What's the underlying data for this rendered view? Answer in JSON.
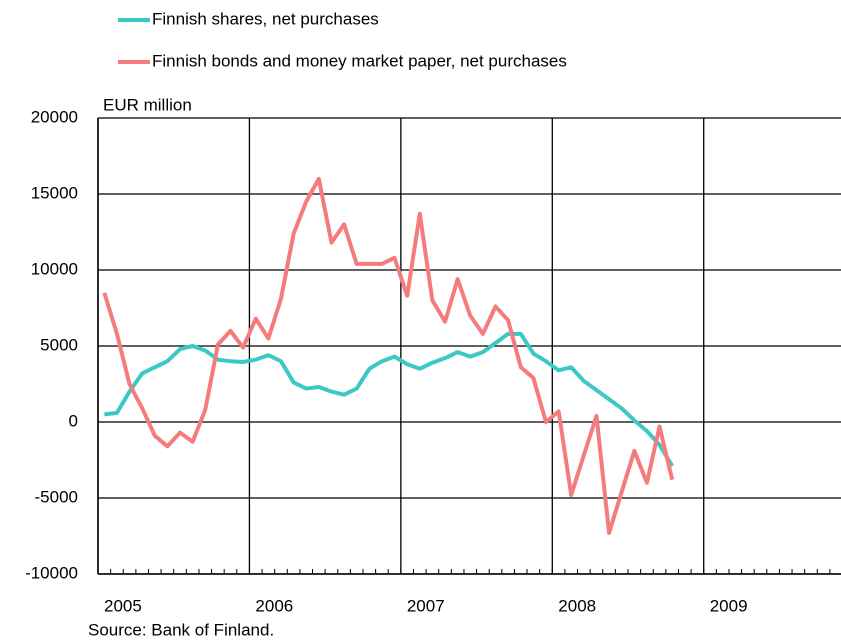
{
  "chart_data": {
    "type": "line",
    "y_axis_label": "EUR million",
    "source": "Source: Bank of Finland.",
    "x": [
      2005.042,
      2005.125,
      2005.208,
      2005.292,
      2005.375,
      2005.458,
      2005.542,
      2005.625,
      2005.708,
      2005.792,
      2005.875,
      2005.958,
      2006.042,
      2006.125,
      2006.208,
      2006.292,
      2006.375,
      2006.458,
      2006.542,
      2006.625,
      2006.708,
      2006.792,
      2006.875,
      2006.958,
      2007.042,
      2007.125,
      2007.208,
      2007.292,
      2007.375,
      2007.458,
      2007.542,
      2007.625,
      2007.708,
      2007.792,
      2007.875,
      2007.958,
      2008.042,
      2008.125,
      2008.208,
      2008.292,
      2008.375,
      2008.458,
      2008.542,
      2008.625,
      2008.708,
      2008.792
    ],
    "series": [
      {
        "name": "Finnish shares, net purchases",
        "color": "#3cc8c4",
        "values": [
          500,
          600,
          2000,
          3200,
          3600,
          4000,
          4800,
          5000,
          4700,
          4100,
          4000,
          3950,
          4100,
          4400,
          4000,
          2600,
          2200,
          2300,
          2000,
          1800,
          2200,
          3500,
          4000,
          4300,
          3800,
          3500,
          3900,
          4200,
          4600,
          4300,
          4600,
          5200,
          5800,
          5800,
          4500,
          4000,
          3400,
          3600,
          2700,
          2100,
          1500,
          900,
          100,
          -600,
          -1500,
          -2900
        ]
      },
      {
        "name": "Finnish bonds and money market paper, net purchases",
        "color": "#f47c7c",
        "values": [
          8500,
          5800,
          2500,
          900,
          -900,
          -1600,
          -700,
          -1300,
          800,
          5100,
          6000,
          4900,
          6800,
          5500,
          8100,
          12400,
          14500,
          16000,
          11800,
          13000,
          10400,
          10400,
          10400,
          10800,
          8300,
          13700,
          8000,
          6600,
          9400,
          7000,
          5800,
          7600,
          6700,
          3600,
          2900,
          0,
          700,
          -4800,
          -2200,
          400,
          -7300,
          -4600,
          -1900,
          -4000,
          -300,
          -3800
        ]
      }
    ],
    "xlim": [
      2005,
      2009.9
    ],
    "xticks": [
      2005,
      2006,
      2007,
      2008,
      2009
    ],
    "ylim": [
      -10000,
      20000
    ],
    "yticks": [
      -10000,
      -5000,
      0,
      5000,
      10000,
      15000,
      20000
    ],
    "grid": true
  }
}
